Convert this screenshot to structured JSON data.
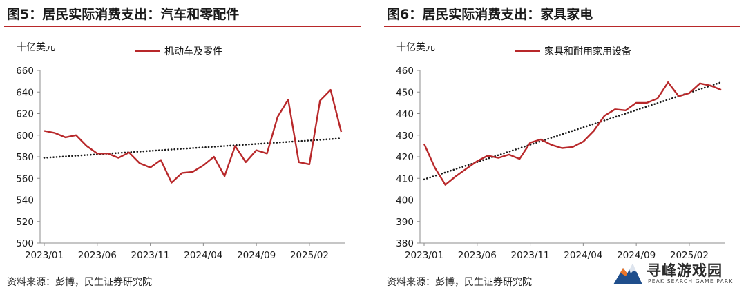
{
  "chart_data": [
    {
      "type": "line",
      "title": "图5：居民实际消费支出：汽车和零配件",
      "unit_label": "十亿美元",
      "legend_position": "top-center",
      "x_tick_labels": [
        "2023/01",
        "2023/06",
        "2023/11",
        "2024/04",
        "2024/09",
        "2025/02"
      ],
      "ylim": [
        500,
        660
      ],
      "y_ticks": [
        500,
        520,
        540,
        560,
        580,
        600,
        620,
        640,
        660
      ],
      "grid": false,
      "series": [
        {
          "name": "机动车及零件",
          "color": "#b8282a",
          "x": [
            "2023/01",
            "2023/02",
            "2023/03",
            "2023/04",
            "2023/05",
            "2023/06",
            "2023/07",
            "2023/08",
            "2023/09",
            "2023/10",
            "2023/11",
            "2023/12",
            "2024/01",
            "2024/02",
            "2024/03",
            "2024/04",
            "2024/05",
            "2024/06",
            "2024/07",
            "2024/08",
            "2024/09",
            "2024/10",
            "2024/11",
            "2024/12",
            "2025/01",
            "2025/02",
            "2025/03",
            "2025/04",
            "2025/05"
          ],
          "values": [
            604,
            602,
            598,
            600,
            590,
            583,
            583,
            579,
            584,
            574,
            570,
            577,
            556,
            565,
            566,
            572,
            580,
            562,
            590,
            575,
            586,
            583,
            617,
            633,
            575,
            573,
            632,
            642,
            603
          ]
        }
      ],
      "trendline": {
        "style": "dotted",
        "color": "#1a1a1a",
        "start": 579,
        "end": 597
      }
    },
    {
      "type": "line",
      "title": "图6：居民实际消费支出：家具家电",
      "unit_label": "十亿美元",
      "legend_position": "top-center",
      "x_tick_labels": [
        "2023/01",
        "2023/06",
        "2023/11",
        "2024/04",
        "2024/09",
        "2025/02"
      ],
      "ylim": [
        380,
        460
      ],
      "y_ticks": [
        380,
        390,
        400,
        410,
        420,
        430,
        440,
        450,
        460
      ],
      "grid": false,
      "series": [
        {
          "name": "家具和耐用家用设备",
          "color": "#b8282a",
          "x": [
            "2023/01",
            "2023/02",
            "2023/03",
            "2023/04",
            "2023/05",
            "2023/06",
            "2023/07",
            "2023/08",
            "2023/09",
            "2023/10",
            "2023/11",
            "2023/12",
            "2024/01",
            "2024/02",
            "2024/03",
            "2024/04",
            "2024/05",
            "2024/06",
            "2024/07",
            "2024/08",
            "2024/09",
            "2024/10",
            "2024/11",
            "2024/12",
            "2025/01",
            "2025/02",
            "2025/03",
            "2025/04",
            "2025/05"
          ],
          "values": [
            426,
            415,
            407,
            411,
            414.5,
            418,
            420.5,
            419.5,
            421,
            419,
            426.5,
            428,
            425.5,
            424,
            424.5,
            427,
            432,
            439,
            442,
            441.5,
            445,
            445,
            447,
            454.5,
            448,
            449.5,
            454,
            453,
            451
          ]
        }
      ],
      "trendline": {
        "style": "dotted",
        "color": "#1a1a1a",
        "start": 409.5,
        "end": 454.5
      }
    }
  ],
  "source_text": "资料来源：彭博，民生证券研究院",
  "watermark": {
    "name_cn": "寻峰游戏园",
    "name_en": "PEAK SEARCH GAME PARK",
    "logo_icon": "mountain-logo-icon"
  }
}
